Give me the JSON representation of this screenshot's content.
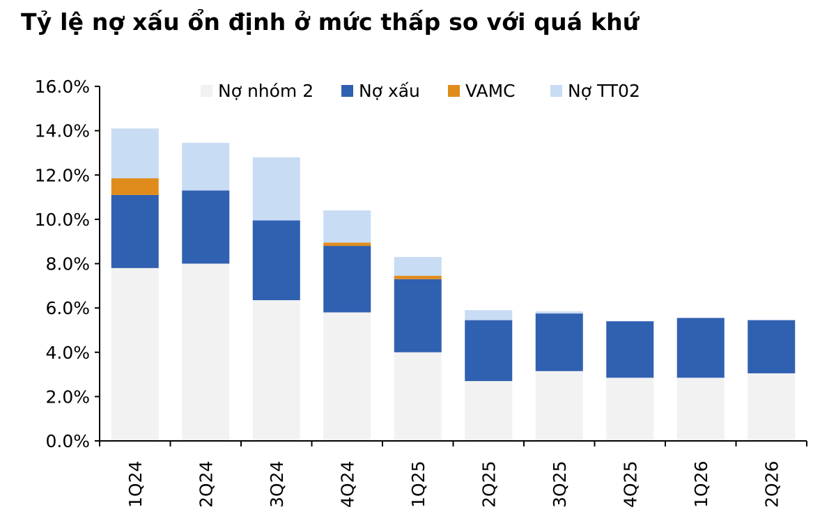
{
  "chart_data": {
    "type": "bar",
    "stacked": true,
    "title": "Tỷ lệ nợ xấu ổn định ở mức thấp so với quá khứ",
    "xlabel": "",
    "ylabel": "",
    "ylim": [
      0,
      16
    ],
    "y_tick_values": [
      0,
      2,
      4,
      6,
      8,
      10,
      12,
      14,
      16
    ],
    "y_tick_labels": [
      "0.0%",
      "2.0%",
      "4.0%",
      "6.0%",
      "8.0%",
      "10.0%",
      "12.0%",
      "14.0%",
      "16.0%"
    ],
    "grid": false,
    "legend_position": "top",
    "categories": [
      "1Q24",
      "2Q24",
      "3Q24",
      "4Q24",
      "1Q25",
      "2Q25",
      "3Q25",
      "4Q25",
      "1Q26",
      "2Q26"
    ],
    "series": [
      {
        "name": "Nợ nhóm 2",
        "color": "#f2f2f2",
        "values": [
          7.8,
          8.0,
          6.35,
          5.8,
          4.0,
          2.7,
          3.15,
          2.85,
          2.85,
          3.05
        ]
      },
      {
        "name": "Nợ xấu",
        "color": "#3060b0",
        "values": [
          3.3,
          3.3,
          3.6,
          3.0,
          3.3,
          2.75,
          2.6,
          2.55,
          2.7,
          2.4
        ]
      },
      {
        "name": "VAMC",
        "color": "#e08c1c",
        "values": [
          0.75,
          0.0,
          0.0,
          0.15,
          0.15,
          0.0,
          0.0,
          0.0,
          0.0,
          0.0
        ]
      },
      {
        "name": "Nợ TT02",
        "color": "#c8dcf4",
        "values": [
          2.25,
          2.15,
          2.85,
          1.45,
          0.85,
          0.45,
          0.1,
          0.0,
          0.0,
          0.0
        ]
      }
    ]
  }
}
